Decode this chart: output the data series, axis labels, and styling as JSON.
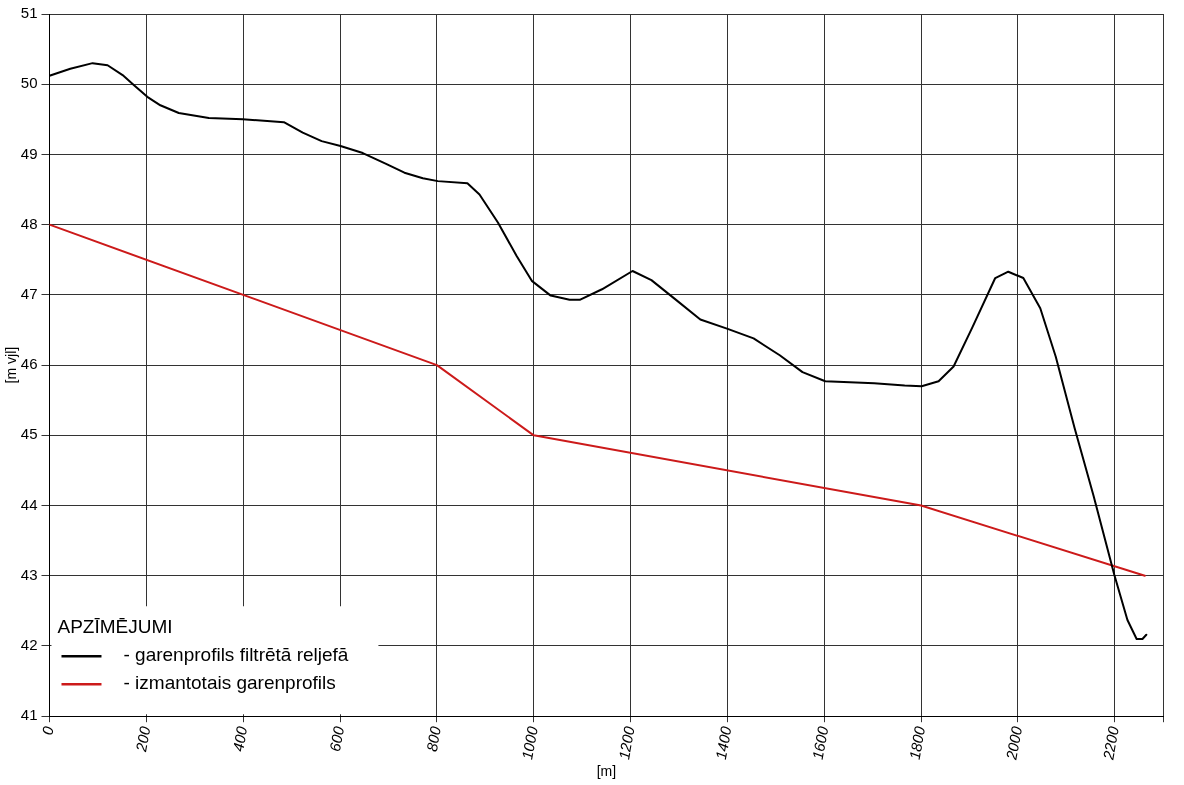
{
  "chart_data": {
    "type": "line",
    "xlabel": "[m]",
    "ylabel": "[m vjl]",
    "legend_title": "APZĪMĒJUMI",
    "legend": "bottom left",
    "grid": true,
    "marker": "none",
    "line_style": "solid",
    "xlim": [
      0,
      2300
    ],
    "xticks": [
      0,
      200,
      400,
      600,
      800,
      1000,
      1200,
      1400,
      1600,
      1800,
      2000,
      2200,
      {
        "value": 2300,
        "label": null
      }
    ],
    "ylim": [
      41,
      51
    ],
    "yticks": [
      41,
      42,
      43,
      44,
      45,
      46,
      47,
      48,
      49,
      50,
      51
    ],
    "series": [
      {
        "name": "- garenprofils filtrētā reljefā",
        "color": "#000000",
        "x": [
          0,
          43,
          89,
          120,
          151,
          174,
          202,
          229,
          267,
          329,
          399,
          484,
          523,
          562,
          601,
          647,
          694,
          733,
          771,
          802,
          863,
          888,
          926,
          965,
          996,
          1035,
          1074,
          1095,
          1141,
          1204,
          1243,
          1290,
          1344,
          1399,
          1454,
          1508,
          1555,
          1602,
          1703,
          1766,
          1801,
          1836,
          1867,
          1906,
          1953,
          1980,
          2011,
          2046,
          2078,
          2117,
          2156,
          2199,
          2226,
          2245,
          2257,
          2265
        ],
        "values": [
          50.12,
          50.22,
          50.3,
          50.27,
          50.13,
          49.99,
          49.82,
          49.7,
          49.59,
          49.52,
          49.5,
          49.46,
          49.31,
          49.19,
          49.12,
          49.02,
          48.87,
          48.74,
          48.66,
          48.62,
          48.59,
          48.43,
          48.03,
          47.55,
          47.2,
          46.99,
          46.93,
          46.93,
          47.08,
          47.34,
          47.21,
          46.95,
          46.65,
          46.52,
          46.38,
          46.14,
          45.9,
          45.77,
          45.74,
          45.71,
          45.7,
          45.77,
          45.98,
          46.54,
          47.24,
          47.33,
          47.24,
          46.81,
          46.12,
          45.1,
          44.14,
          43.01,
          42.37,
          42.1,
          42.1,
          42.16
        ]
      },
      {
        "name": "- izmantotais garenprofils",
        "color": "#cc1a1a",
        "x": [
          0,
          800,
          1000,
          1800,
          2262
        ],
        "values": [
          48,
          46,
          45,
          44,
          43
        ]
      }
    ]
  }
}
